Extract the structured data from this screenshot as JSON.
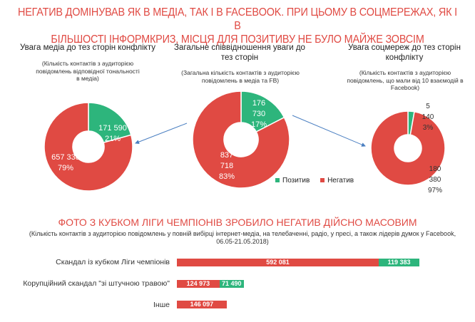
{
  "headline": {
    "line1": "НЕГАТИВ ДОМІНУВАВ ЯК  В МЕДІА, ТАК І В FACEBOOK. ПРИ ЦЬОМУ В СОЦМЕРЕЖАХ, ЯК І В",
    "line2": "БІЛЬШОСТІ ІНФОРМКРИЗ, МІСЦЯ ДЛЯ ПОЗИТИВУ НЕ БУЛО МАЙЖЕ ЗОВСІМ"
  },
  "colors": {
    "positive": "#2db57c",
    "negative": "#e04a43",
    "accent": "#e04a43",
    "arrow": "#4a7fc1"
  },
  "legend": {
    "positive": "Позитив",
    "negative": "Негатив"
  },
  "chart_data": [
    {
      "type": "pie",
      "title": "Увага медіа до тез сторін конфлікту",
      "subtitle": "(Кількість контактів з аудиторією повідомлень відповідної тональності в медіа)",
      "slices": [
        {
          "name": "Позитив",
          "value": 171590,
          "label_value": "171 590",
          "label_pct": "21%"
        },
        {
          "name": "Негатив",
          "value": 657338,
          "label_value": "657 338",
          "label_pct": "79%"
        }
      ]
    },
    {
      "type": "pie",
      "title": "Загальне співвідношення уваги до тез сторін",
      "subtitle": "(Загальна кількість контактів з аудиторією повідомлень в медіа та FB)",
      "slices": [
        {
          "name": "Позитив",
          "value": 176730,
          "label_value": "176 730",
          "label_pct": "17%"
        },
        {
          "name": "Негатив",
          "value": 837718,
          "label_value": "837 718",
          "label_pct": "83%"
        }
      ]
    },
    {
      "type": "pie",
      "title": "Увага соцмереж до тез сторін конфлікту",
      "subtitle": "(Кількість контактів з аудиторією повідомлень, що мали від 10 взаємодій в Facebook)",
      "slices": [
        {
          "name": "Позитив",
          "value": 5140,
          "label_value": "5 140",
          "label_pct": "3%"
        },
        {
          "name": "Негатив",
          "value": 180380,
          "label_value": "180 380",
          "label_pct": "97%"
        }
      ]
    },
    {
      "type": "bar",
      "title": "ФОТО З КУБКОМ ЛІГИ ЧЕМПІОНІВ ЗРОБИЛО НЕГАТИВ ДІЙСНО МАСОВИМ",
      "subtitle": "(Кількість контактів з аудиторією повідомлень у повній вибірці  інтернет-медіа, на телебаченні, радіо, у пресі, а також лідерів думок у Facebook, 06.05-21.05.2018)",
      "orientation": "horizontal",
      "stacked": true,
      "categories": [
        "Скандал із кубком Ліги чемпіонів",
        "Корупційний скандал \"зі штучною травою\"",
        "Інше"
      ],
      "series": [
        {
          "name": "Негатив",
          "values": [
            592081,
            124973,
            146097
          ],
          "labels": [
            "592 081",
            "124 973",
            "146 097"
          ]
        },
        {
          "name": "Позитив",
          "values": [
            119383,
            71490,
            0
          ],
          "labels": [
            "119 383",
            "71 490",
            ""
          ]
        }
      ]
    }
  ]
}
